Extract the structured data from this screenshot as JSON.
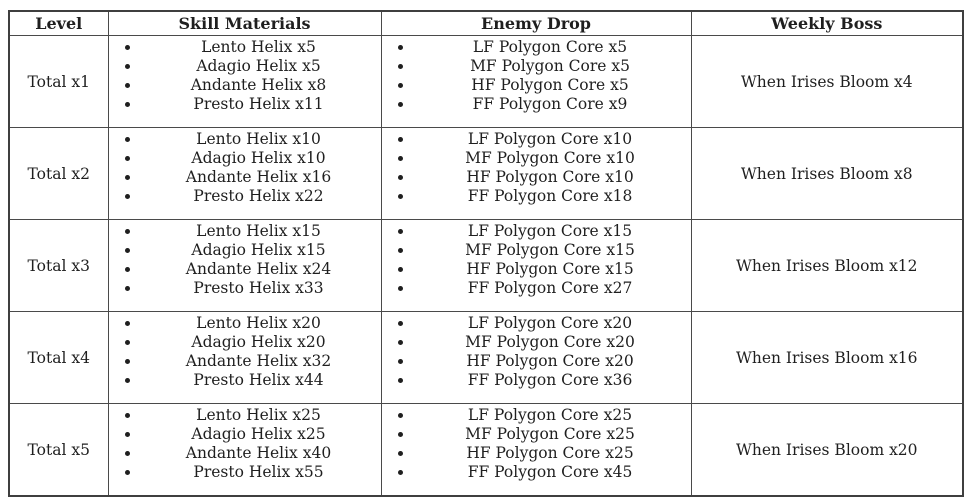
{
  "colors": {
    "background": "#ffffff",
    "border": "#4a4a4a",
    "text": "#1f1f1f"
  },
  "table": {
    "headers": {
      "level": "Level",
      "skill_materials": "Skill Materials",
      "enemy_drop": "Enemy Drop",
      "weekly_boss": "Weekly Boss"
    },
    "rows": [
      {
        "level": "Total x1",
        "skill_materials": [
          "Lento Helix x5",
          "Adagio Helix x5",
          "Andante Helix x8",
          "Presto Helix x11"
        ],
        "enemy_drop": [
          "LF Polygon Core x5",
          "MF Polygon Core x5",
          "HF Polygon Core x5",
          "FF Polygon Core x9"
        ],
        "weekly_boss": "When Irises Bloom x4"
      },
      {
        "level": "Total x2",
        "skill_materials": [
          "Lento Helix x10",
          "Adagio Helix x10",
          "Andante Helix x16",
          "Presto Helix x22"
        ],
        "enemy_drop": [
          "LF Polygon Core x10",
          "MF Polygon Core x10",
          "HF Polygon Core x10",
          "FF Polygon Core x18"
        ],
        "weekly_boss": "When Irises Bloom x8"
      },
      {
        "level": "Total x3",
        "skill_materials": [
          "Lento Helix x15",
          "Adagio Helix x15",
          "Andante Helix x24",
          "Presto Helix x33"
        ],
        "enemy_drop": [
          "LF Polygon Core x15",
          "MF Polygon Core x15",
          "HF Polygon Core x15",
          "FF Polygon Core x27"
        ],
        "weekly_boss": "When Irises Bloom x12"
      },
      {
        "level": "Total x4",
        "skill_materials": [
          "Lento Helix x20",
          "Adagio Helix x20",
          "Andante Helix x32",
          "Presto Helix x44"
        ],
        "enemy_drop": [
          "LF Polygon Core x20",
          "MF Polygon Core x20",
          "HF Polygon Core x20",
          "FF Polygon Core x36"
        ],
        "weekly_boss": "When Irises Bloom x16"
      },
      {
        "level": "Total x5",
        "skill_materials": [
          "Lento Helix x25",
          "Adagio Helix x25",
          "Andante Helix x40",
          "Presto Helix x55"
        ],
        "enemy_drop": [
          "LF Polygon Core x25",
          "MF Polygon Core x25",
          "HF Polygon Core x25",
          "FF Polygon Core x45"
        ],
        "weekly_boss": "When Irises Bloom x20"
      }
    ]
  }
}
